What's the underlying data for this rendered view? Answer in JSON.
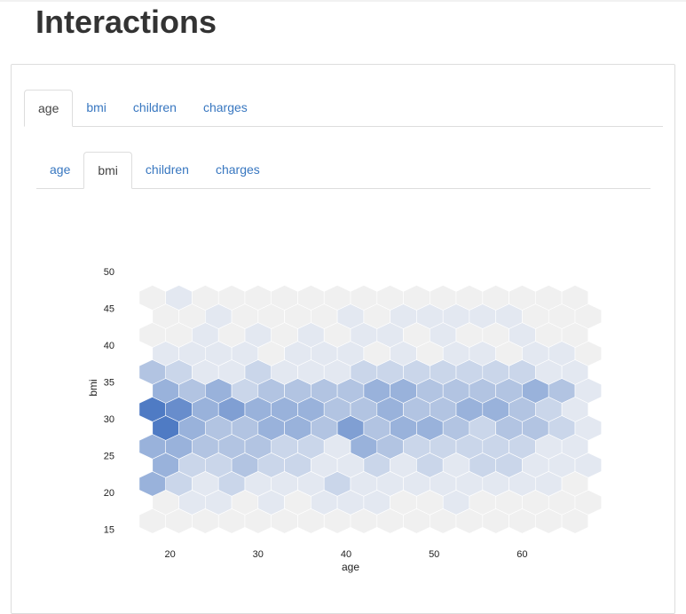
{
  "page": {
    "title": "Interactions"
  },
  "outer_tabs": [
    {
      "label": "age",
      "active": true
    },
    {
      "label": "bmi",
      "active": false
    },
    {
      "label": "children",
      "active": false
    },
    {
      "label": "charges",
      "active": false
    }
  ],
  "inner_tabs": [
    {
      "label": "age",
      "active": false
    },
    {
      "label": "bmi",
      "active": true
    },
    {
      "label": "children",
      "active": false
    },
    {
      "label": "charges",
      "active": false
    }
  ],
  "colors": {
    "accent": "#3877c0",
    "hex_empty": "#f0f0f0",
    "hex_low": "#e3e8f1",
    "hex_high": "#4f7bc4"
  },
  "chart_data": {
    "type": "heatmap",
    "subtype": "hexbin",
    "xlabel": "age",
    "ylabel": "bmi",
    "xlim": [
      15.4,
      65.5
    ],
    "ylim": [
      13.6,
      54.6
    ],
    "xticks": [
      20,
      30,
      40,
      50,
      60
    ],
    "yticks": [
      15,
      20,
      25,
      30,
      35,
      40,
      45,
      50
    ],
    "grid": false,
    "legend": "none",
    "bins": {
      "cols": 17,
      "x0": 18,
      "dx": 3,
      "y0": 16.1,
      "dy": 2.53,
      "row_count": 13,
      "density": [
        [
          0,
          0,
          0,
          0,
          0,
          0,
          0,
          0,
          0,
          0,
          0,
          0,
          0,
          0,
          0,
          0,
          0
        ],
        [
          0,
          1,
          1,
          0,
          1,
          0,
          1,
          1,
          1,
          0,
          0,
          1,
          0,
          0,
          0,
          0,
          0
        ],
        [
          4,
          2,
          1,
          2,
          1,
          1,
          1,
          2,
          1,
          1,
          1,
          1,
          1,
          1,
          1,
          1,
          0
        ],
        [
          4,
          2,
          2,
          3,
          2,
          2,
          1,
          1,
          2,
          1,
          2,
          1,
          2,
          2,
          1,
          1,
          1
        ],
        [
          4,
          4,
          3,
          3,
          3,
          2,
          2,
          1,
          4,
          3,
          2,
          2,
          2,
          2,
          2,
          1,
          1
        ],
        [
          7,
          4,
          3,
          3,
          4,
          4,
          3,
          5,
          3,
          4,
          4,
          3,
          2,
          3,
          3,
          2,
          1
        ],
        [
          7,
          6,
          4,
          5,
          4,
          4,
          4,
          3,
          3,
          4,
          3,
          3,
          4,
          4,
          3,
          2,
          1
        ],
        [
          4,
          3,
          4,
          2,
          3,
          3,
          3,
          3,
          4,
          4,
          3,
          3,
          3,
          3,
          4,
          3,
          1
        ],
        [
          3,
          2,
          1,
          1,
          2,
          1,
          1,
          1,
          2,
          2,
          2,
          2,
          2,
          2,
          2,
          1,
          1
        ],
        [
          1,
          1,
          1,
          1,
          0,
          1,
          1,
          1,
          0,
          1,
          0,
          1,
          1,
          0,
          1,
          1,
          0
        ],
        [
          0,
          0,
          1,
          0,
          1,
          0,
          1,
          0,
          1,
          1,
          0,
          1,
          0,
          0,
          1,
          0,
          0
        ],
        [
          0,
          0,
          1,
          0,
          0,
          0,
          0,
          1,
          0,
          1,
          1,
          1,
          1,
          1,
          0,
          0,
          0
        ],
        [
          0,
          1,
          0,
          0,
          0,
          0,
          0,
          0,
          0,
          0,
          0,
          0,
          0,
          0,
          0,
          0,
          0
        ]
      ]
    }
  }
}
